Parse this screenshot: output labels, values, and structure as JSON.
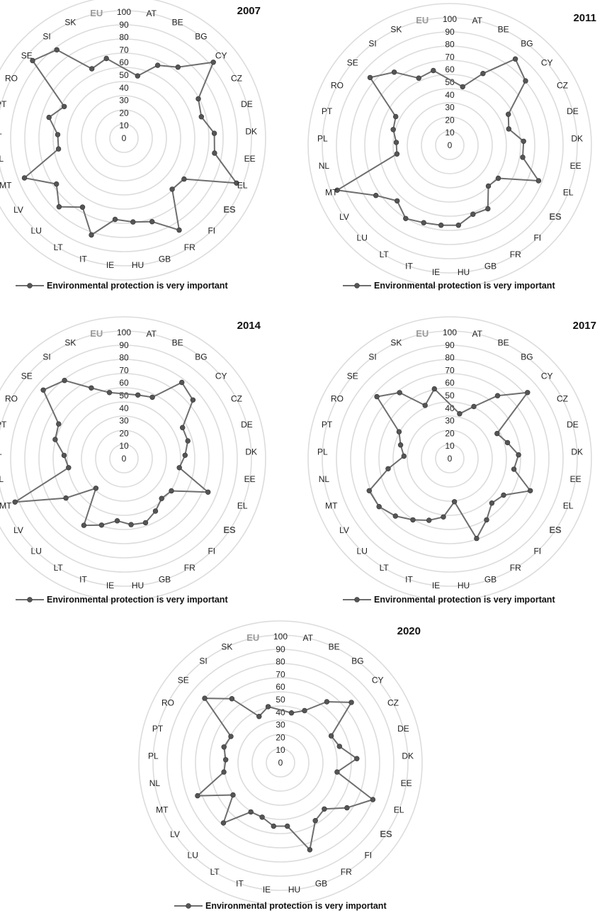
{
  "colors": {
    "ring": "#dcdcdc",
    "line": "#6e6e6e",
    "marker": "#555555",
    "eu_label": "#9a9a9a",
    "es_label": "#555555"
  },
  "chart_data": [
    {
      "type": "radar",
      "title": "2007",
      "legend": "Environmental protection is very important",
      "legend_placement": "bottom-left",
      "rlim": [
        0,
        100
      ],
      "ticks": [
        "0",
        "10",
        "20",
        "30",
        "40",
        "50",
        "60",
        "70",
        "80",
        "90",
        "100"
      ],
      "categories": [
        "AT",
        "BE",
        "BG",
        "CY",
        "CZ",
        "DE",
        "DK",
        "EE",
        "EL",
        "ES",
        "FI",
        "FR",
        "GB",
        "HU",
        "IE",
        "IT",
        "LT",
        "LU",
        "LV",
        "MT",
        "NL",
        "PL",
        "PT",
        "RO",
        "SE",
        "SI",
        "SK",
        "EU"
      ],
      "values": [
        50,
        63,
        70,
        92,
        66,
        63,
        71,
        72,
        95,
        57,
        55,
        84,
        69,
        66,
        64,
        80,
        63,
        74,
        64,
        84,
        52,
        52,
        61,
        53,
        94,
        87,
        60,
        64
      ]
    },
    {
      "type": "radar",
      "title": "2011",
      "legend": "Environmental protection is very important",
      "legend_placement": "bottom-left",
      "rlim": [
        0,
        100
      ],
      "ticks": [
        "0",
        "10",
        "20",
        "30",
        "40",
        "50",
        "60",
        "70",
        "80",
        "90",
        "100"
      ],
      "categories": [
        "AT",
        "BE",
        "BG",
        "CY",
        "CZ",
        "DE",
        "DK",
        "EE",
        "EL",
        "ES",
        "FI",
        "FR",
        "GB",
        "HU",
        "IE",
        "IT",
        "LT",
        "LU",
        "LV",
        "MT",
        "NL",
        "PL",
        "PT",
        "RO",
        "SE",
        "SI",
        "SK",
        "EU"
      ],
      "values": [
        47,
        62,
        85,
        78,
        52,
        48,
        58,
        58,
        75,
        46,
        44,
        58,
        57,
        63,
        63,
        64,
        67,
        60,
        70,
        95,
        42,
        42,
        46,
        48,
        82,
        72,
        58,
        60
      ]
    },
    {
      "type": "radar",
      "title": "2014",
      "legend": "Environmental protection is very important",
      "legend_placement": "bottom-left",
      "rlim": [
        0,
        100
      ],
      "ticks": [
        "0",
        "10",
        "20",
        "30",
        "40",
        "50",
        "60",
        "70",
        "80",
        "90",
        "100"
      ],
      "categories": [
        "AT",
        "BE",
        "BG",
        "CY",
        "CZ",
        "DE",
        "DK",
        "EE",
        "EL",
        "ES",
        "FI",
        "FR",
        "GB",
        "HU",
        "IE",
        "IT",
        "LT",
        "LU",
        "LV",
        "MT",
        "NL",
        "PL",
        "PT",
        "RO",
        "SE",
        "SI",
        "SK",
        "EU"
      ],
      "values": [
        51,
        53,
        75,
        71,
        52,
        52,
        48,
        44,
        71,
        45,
        43,
        48,
        53,
        52,
        49,
        55,
        61,
        32,
        55,
        92,
        44,
        47,
        56,
        58,
        83,
        77,
        61,
        53
      ]
    },
    {
      "type": "radar",
      "title": "2017",
      "legend": "Environmental protection is very important",
      "legend_placement": "bottom-left",
      "rlim": [
        0,
        100
      ],
      "ticks": [
        "0",
        "10",
        "20",
        "30",
        "40",
        "50",
        "60",
        "70",
        "80",
        "90",
        "100"
      ],
      "categories": [
        "AT",
        "BE",
        "BG",
        "CY",
        "CZ",
        "DE",
        "DK",
        "EE",
        "EL",
        "ES",
        "FI",
        "FR",
        "GB",
        "HU",
        "IE",
        "IT",
        "LT",
        "LU",
        "LV",
        "MT",
        "NL",
        "PL",
        "PT",
        "RO",
        "SE",
        "SI",
        "SK",
        "EU"
      ],
      "values": [
        36,
        45,
        62,
        80,
        42,
        47,
        54,
        51,
        68,
        51,
        48,
        56,
        66,
        34,
        46,
        51,
        56,
        62,
        67,
        68,
        49,
        36,
        40,
        45,
        75,
        65,
        46,
        56
      ]
    },
    {
      "type": "radar",
      "title": "2020",
      "legend": "Environmental protection is very important",
      "legend_placement": "bottom-left",
      "rlim": [
        0,
        100
      ],
      "ticks": [
        "0",
        "10",
        "20",
        "30",
        "40",
        "50",
        "60",
        "70",
        "80",
        "90",
        "100"
      ],
      "categories": [
        "AT",
        "BE",
        "BG",
        "CY",
        "CZ",
        "DE",
        "DK",
        "EE",
        "EL",
        "ES",
        "FI",
        "FR",
        "GB",
        "HU",
        "IE",
        "IT",
        "LT",
        "LU",
        "LV",
        "MT",
        "NL",
        "PL",
        "PT",
        "RO",
        "SE",
        "SI",
        "SK",
        "EU"
      ],
      "values": [
        40,
        45,
        60,
        73,
        45,
        48,
        60,
        45,
        78,
        63,
        50,
        53,
        72,
        50,
        50,
        45,
        45,
        65,
        45,
        70,
        45,
        43,
        46,
        44,
        78,
        63,
        40,
        45
      ]
    }
  ]
}
